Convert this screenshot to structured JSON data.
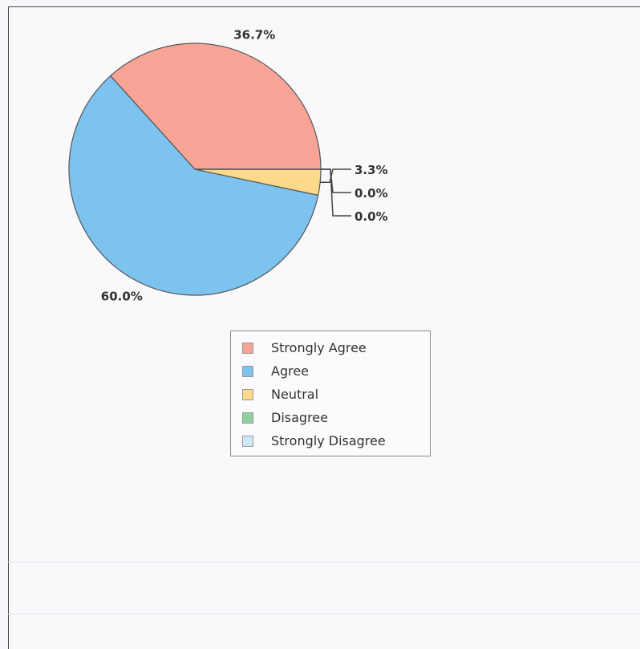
{
  "chart_data": {
    "type": "pie",
    "title": "",
    "categories": [
      "Strongly Agree",
      "Agree",
      "Neutral",
      "Disagree",
      "Strongly Disagree"
    ],
    "values": [
      36.7,
      60.0,
      3.3,
      0.0,
      0.0
    ],
    "labels": [
      "36.7%",
      "60.0%",
      "3.3%",
      "0.0%",
      "0.0%"
    ],
    "colors": [
      "#f7a396",
      "#7cc3ef",
      "#fdd98a",
      "#8fd19e",
      "#cfe9f8"
    ],
    "legend_placement": "bottom",
    "start_angle_deg": 0,
    "direction": "counterclockwise"
  }
}
